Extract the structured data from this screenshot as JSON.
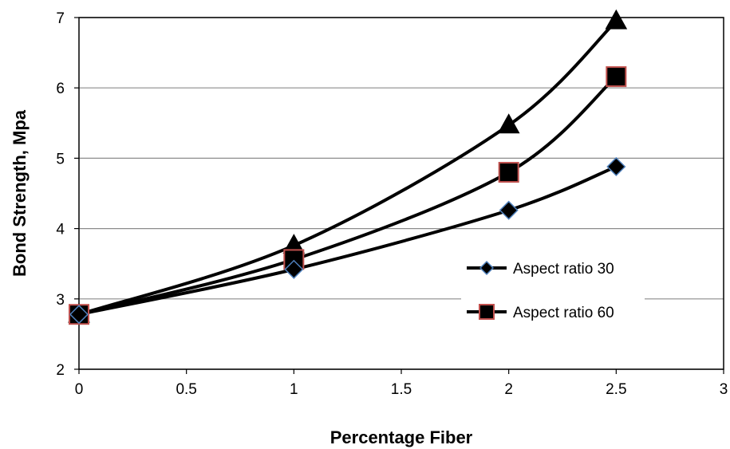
{
  "chart_data": {
    "type": "line",
    "title": "",
    "xlabel": "Percentage Fiber",
    "ylabel": "Bond Strength, Mpa",
    "xlim": [
      0,
      3
    ],
    "ylim": [
      2,
      7
    ],
    "xticks": [
      0,
      0.5,
      1,
      1.5,
      2,
      2.5,
      3
    ],
    "yticks": [
      2,
      3,
      4,
      5,
      6,
      7
    ],
    "xtick_labels": [
      "0",
      "0.5",
      "1",
      "1.5",
      "2",
      "2.5",
      "3"
    ],
    "ytick_labels": [
      "2",
      "3",
      "4",
      "5",
      "6",
      "7"
    ],
    "grid": "horizontal",
    "smoothed": true,
    "legend_position": "right",
    "series": [
      {
        "name": "Aspect ratio 30",
        "marker": "diamond",
        "line_color": "#000000",
        "marker_fill": "#000000",
        "marker_edge": "#4f81bd",
        "x": [
          0,
          1,
          2,
          2.5
        ],
        "y": [
          2.78,
          3.42,
          4.26,
          4.88
        ]
      },
      {
        "name": "Aspect ratio 60",
        "marker": "square",
        "line_color": "#000000",
        "marker_fill": "#000000",
        "marker_edge": "#c0504d",
        "x": [
          0,
          1,
          2,
          2.5
        ],
        "y": [
          2.78,
          3.56,
          4.8,
          6.16
        ]
      },
      {
        "marker": "triangle",
        "line_color": "#000000",
        "marker_fill": "#000000",
        "marker_edge": "#000000",
        "x": [
          0,
          1,
          2,
          2.5
        ],
        "y": [
          2.78,
          3.76,
          5.47,
          6.95
        ]
      }
    ],
    "legend": [
      {
        "label": "Aspect ratio 30",
        "marker": "diamond"
      },
      {
        "label": "Aspect ratio 60",
        "marker": "square"
      }
    ]
  }
}
